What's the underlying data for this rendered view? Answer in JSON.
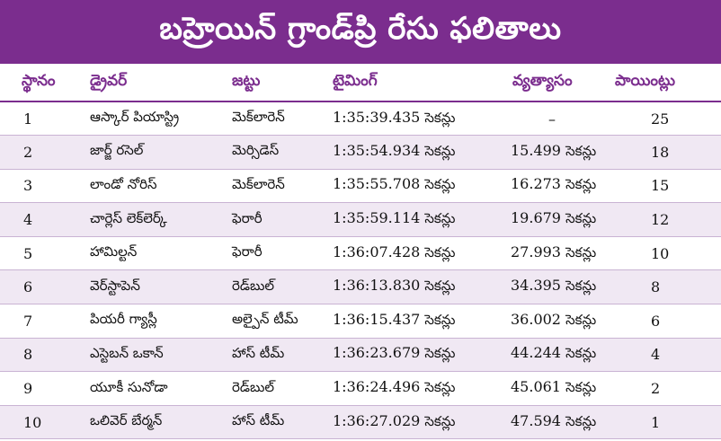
{
  "title": "బహ్రెయిన్ గ్రాండ్‌ప్రి రేసు ఫలితాలు",
  "colors": {
    "accent": "#7b2d8e",
    "row_alt": "#f0e8f3"
  },
  "headers": {
    "position": "స్థానం",
    "driver": "డ్రైవర్",
    "team": "జట్టు",
    "timing": "టైమింగ్",
    "gap": "వ్యత్యాసం",
    "points": "పాయింట్లు"
  },
  "rows": [
    {
      "position": "1",
      "driver": "ఆస్కార్ పియాస్ట్రి",
      "team": "మెక్‌లారెన్",
      "time": "1:35:39.435",
      "time_unit": "సెకన్లు",
      "gap": "–",
      "gap_unit": "",
      "points": "25"
    },
    {
      "position": "2",
      "driver": "జార్జ్ రసెల్",
      "team": "మెర్సిడెస్",
      "time": "1:35:54.934",
      "time_unit": "సెకన్లు",
      "gap": "15.499",
      "gap_unit": "సెకన్లు",
      "points": "18"
    },
    {
      "position": "3",
      "driver": "లాండో నోరిస్",
      "team": "మెక్‌లారెన్",
      "time": "1:35:55.708",
      "time_unit": "సెకన్లు",
      "gap": "16.273",
      "gap_unit": "సెకన్లు",
      "points": "15"
    },
    {
      "position": "4",
      "driver": "చార్లెస్ లెక్‌లెర్క్",
      "team": "ఫెరారీ",
      "time": "1:35:59.114",
      "time_unit": "సెకన్లు",
      "gap": "19.679",
      "gap_unit": "సెకన్లు",
      "points": "12"
    },
    {
      "position": "5",
      "driver": "హామిల్టన్",
      "team": "ఫెరారీ",
      "time": "1:36:07.428",
      "time_unit": "సెకన్లు",
      "gap": "27.993",
      "gap_unit": "సెకన్లు",
      "points": "10"
    },
    {
      "position": "6",
      "driver": "వెర్‌స్టాపెన్",
      "team": "రెడ్‌బుల్",
      "time": "1:36:13.830",
      "time_unit": "సెకన్లు",
      "gap": "34.395",
      "gap_unit": "సెకన్లు",
      "points": "8"
    },
    {
      "position": "7",
      "driver": "పియరీ గ్యాస్లీ",
      "team": "అల్పైన్ టీమ్",
      "time": "1:36:15.437",
      "time_unit": "సెకన్లు",
      "gap": "36.002",
      "gap_unit": "సెకన్లు",
      "points": "6"
    },
    {
      "position": "8",
      "driver": "ఎస్టెబన్ ఒకాన్",
      "team": "హాస్ టీమ్",
      "time": "1:36:23.679",
      "time_unit": "సెకన్లు",
      "gap": "44.244",
      "gap_unit": "సెకన్లు",
      "points": "4"
    },
    {
      "position": "9",
      "driver": "యూకీ సునోడా",
      "team": "రెడ్‌బుల్",
      "time": "1:36:24.496",
      "time_unit": "సెకన్లు",
      "gap": "45.061",
      "gap_unit": "సెకన్లు",
      "points": "2"
    },
    {
      "position": "10",
      "driver": "ఒలివెర్ బేర్మన్",
      "team": "హాస్ టీమ్",
      "time": "1:36:27.029",
      "time_unit": "సెకన్లు",
      "gap": "47.594",
      "gap_unit": "సెకన్లు",
      "points": "1"
    }
  ]
}
